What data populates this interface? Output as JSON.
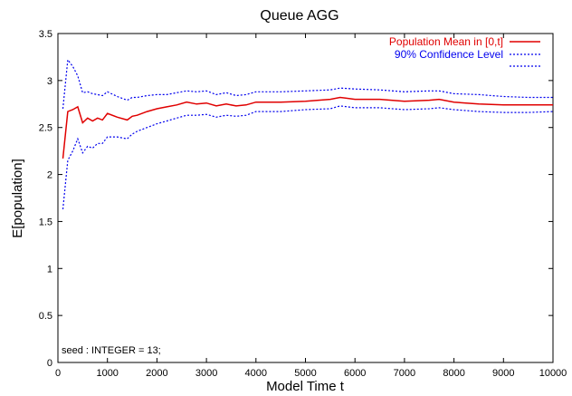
{
  "chart_data": {
    "type": "line",
    "title": "Queue AGG",
    "xlabel": "Model Time t",
    "ylabel": "E[population]",
    "xlim": [
      0,
      10000
    ],
    "ylim": [
      0,
      3.5
    ],
    "xticks": [
      0,
      1000,
      2000,
      3000,
      4000,
      5000,
      6000,
      7000,
      8000,
      9000,
      10000
    ],
    "yticks": [
      0,
      0.5,
      1,
      1.5,
      2,
      2.5,
      3,
      3.5
    ],
    "grid": false,
    "legend_position": "top-right",
    "annotation": "seed : INTEGER = 13;",
    "series": [
      {
        "name": "Population Mean in [0,t]",
        "color": "#e00000",
        "style": "solid",
        "x": [
          100,
          200,
          300,
          400,
          500,
          600,
          700,
          800,
          900,
          1000,
          1200,
          1400,
          1500,
          1600,
          1800,
          2000,
          2200,
          2400,
          2600,
          2800,
          3000,
          3200,
          3400,
          3600,
          3800,
          4000,
          4500,
          5000,
          5500,
          5700,
          6000,
          6500,
          7000,
          7500,
          7700,
          8000,
          8500,
          9000,
          9500,
          10000
        ],
        "y": [
          2.17,
          2.67,
          2.69,
          2.72,
          2.55,
          2.6,
          2.57,
          2.6,
          2.58,
          2.65,
          2.61,
          2.58,
          2.62,
          2.63,
          2.67,
          2.7,
          2.72,
          2.74,
          2.77,
          2.75,
          2.76,
          2.73,
          2.75,
          2.73,
          2.74,
          2.77,
          2.77,
          2.78,
          2.8,
          2.82,
          2.8,
          2.8,
          2.78,
          2.79,
          2.8,
          2.77,
          2.75,
          2.74,
          2.74,
          2.74
        ]
      },
      {
        "name": "90% Confidence Level",
        "color": "#0000ee",
        "style": "dotted",
        "x": [
          100,
          200,
          300,
          400,
          500,
          600,
          700,
          800,
          900,
          1000,
          1200,
          1400,
          1500,
          1600,
          1800,
          2000,
          2200,
          2400,
          2600,
          2800,
          3000,
          3200,
          3400,
          3600,
          3800,
          4000,
          4500,
          5000,
          5500,
          5700,
          6000,
          6500,
          7000,
          7500,
          7700,
          8000,
          8500,
          9000,
          9500,
          10000
        ],
        "y": [
          2.7,
          3.22,
          3.15,
          3.05,
          2.87,
          2.88,
          2.86,
          2.85,
          2.84,
          2.88,
          2.83,
          2.79,
          2.82,
          2.82,
          2.84,
          2.85,
          2.85,
          2.87,
          2.89,
          2.88,
          2.89,
          2.85,
          2.87,
          2.84,
          2.85,
          2.88,
          2.88,
          2.89,
          2.9,
          2.92,
          2.91,
          2.9,
          2.88,
          2.89,
          2.89,
          2.86,
          2.85,
          2.83,
          2.82,
          2.82
        ]
      },
      {
        "name": "",
        "color": "#0000ee",
        "style": "dotted",
        "x": [
          100,
          200,
          300,
          400,
          500,
          600,
          700,
          800,
          900,
          1000,
          1200,
          1400,
          1500,
          1600,
          1800,
          2000,
          2200,
          2400,
          2600,
          2800,
          3000,
          3200,
          3400,
          3600,
          3800,
          4000,
          4500,
          5000,
          5500,
          5700,
          6000,
          6500,
          7000,
          7500,
          7700,
          8000,
          8500,
          9000,
          9500,
          10000
        ],
        "y": [
          1.63,
          2.15,
          2.25,
          2.38,
          2.23,
          2.3,
          2.28,
          2.33,
          2.33,
          2.4,
          2.4,
          2.38,
          2.43,
          2.46,
          2.5,
          2.54,
          2.57,
          2.6,
          2.63,
          2.63,
          2.64,
          2.61,
          2.63,
          2.62,
          2.63,
          2.67,
          2.67,
          2.69,
          2.7,
          2.73,
          2.71,
          2.71,
          2.69,
          2.7,
          2.71,
          2.69,
          2.67,
          2.66,
          2.66,
          2.67
        ]
      }
    ]
  }
}
